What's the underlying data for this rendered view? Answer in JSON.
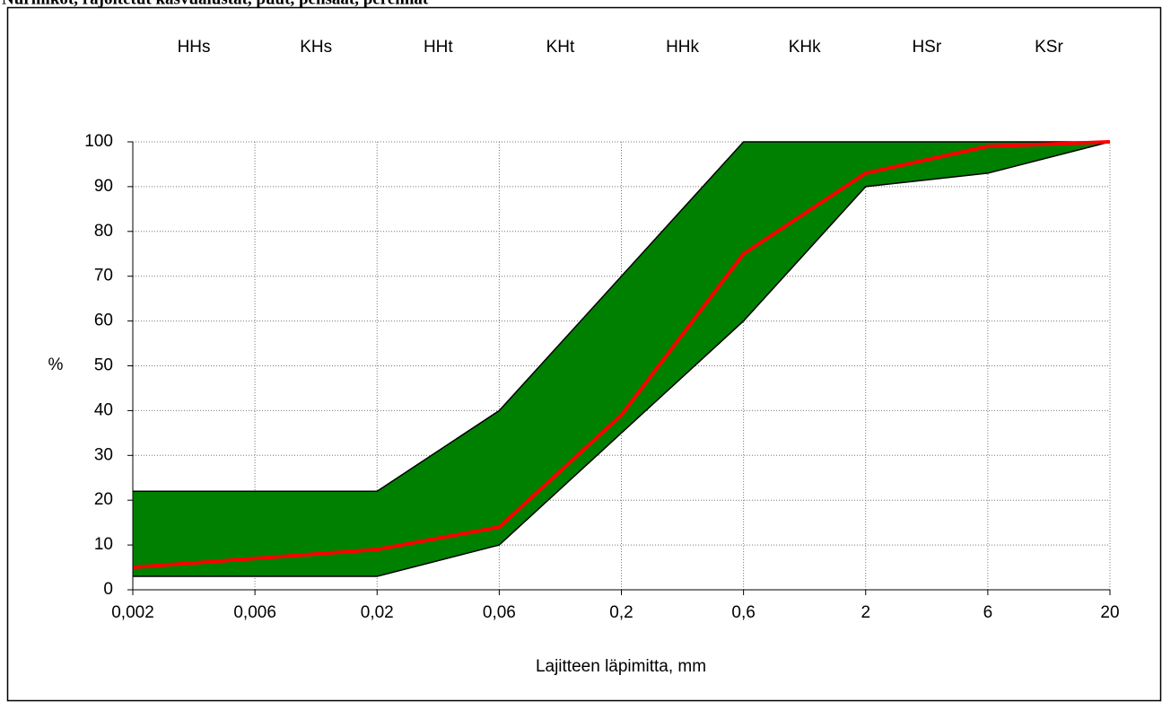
{
  "chart_data": {
    "type": "band-line",
    "title": "Nurmikot, rajoitetut kasvualustat, puut, pensaat, perennat",
    "x_label": "Lajitteen läpimitta, mm",
    "y_label": "%",
    "annotations": [
      "HHs",
      "KHs",
      "HHt",
      "KHt",
      "HHk",
      "KHk",
      "HSr",
      "KSr"
    ],
    "categories": [
      "0,002",
      "0,006",
      "0,02",
      "0,06",
      "0,2",
      "0,6",
      "2",
      "6",
      "20"
    ],
    "band": {
      "color": "#008000",
      "outline": "#000000",
      "lower": [
        3,
        3,
        3,
        10,
        35,
        60,
        90,
        93,
        100
      ],
      "upper": [
        22,
        22,
        22,
        40,
        70,
        100,
        100,
        100,
        100
      ]
    },
    "series": [
      {
        "color": "#ff0000",
        "values": [
          5,
          7,
          9,
          14,
          39,
          75,
          93,
          99,
          100
        ]
      }
    ],
    "ylim": [
      0,
      100
    ],
    "yticks": [
      0,
      10,
      20,
      30,
      40,
      50,
      60,
      70,
      80,
      90,
      100
    ],
    "grid": true
  }
}
